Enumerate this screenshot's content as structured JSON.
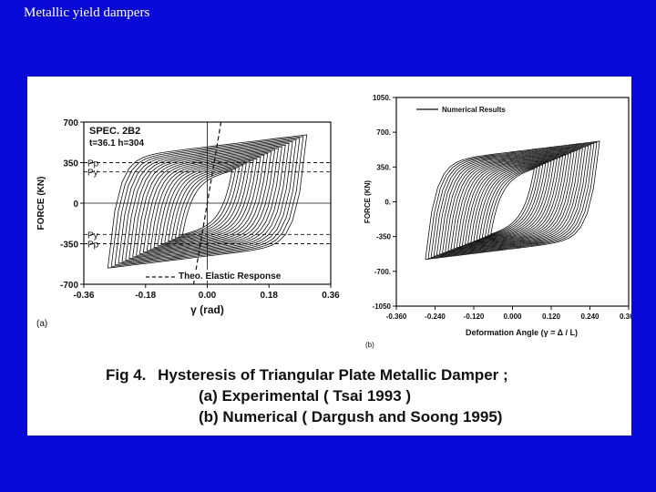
{
  "slide": {
    "title": "Metallic yield dampers"
  },
  "figure": {
    "caption": {
      "fig_label": "Fig 4.",
      "title": "Hysteresis of Triangular Plate Metallic Damper ;",
      "line_a": "(a) Experimental ( Tsai 1993 )",
      "line_b": "(b) Numerical ( Dargush and Soong 1995)"
    }
  },
  "chart_data": [
    {
      "type": "line",
      "panel_label": "(a)",
      "xlabel": "γ (rad)",
      "ylabel": "FORCE (KN)",
      "xlim": [
        -0.36,
        0.36
      ],
      "ylim": [
        -700,
        700
      ],
      "x_ticks": [
        "-0.36",
        "-0.18",
        "0.00",
        "0.18",
        "0.36"
      ],
      "y_ticks": [
        "700",
        "350",
        "0",
        "-350",
        "-700"
      ],
      "grid": false,
      "legend_position": "bottom-center",
      "annotations": [
        "SPEC. 2B2",
        "t=36.1  h=304"
      ],
      "reference_lines": [
        {
          "label": "Pp",
          "value": 350
        },
        {
          "label": "Py",
          "value": 270
        },
        {
          "label": "Py",
          "value": -270
        },
        {
          "label": "Pp",
          "value": -350
        }
      ],
      "series": [
        {
          "name": "Theo. Elastic Response",
          "style": "dashed",
          "x": [
            -0.04,
            0.04
          ],
          "y": [
            -700,
            700
          ]
        },
        {
          "style": "solid",
          "x": [
            -0.29,
            0.29
          ],
          "y": [
            -540,
            590
          ]
        }
      ],
      "colors": {
        "ink": "#111111"
      }
    },
    {
      "type": "line",
      "panel_label": "(b)",
      "xlabel": "Deformation Angle (γ = Δ / L)",
      "ylabel": "FORCE (KN)",
      "xlim": [
        -0.36,
        0.36
      ],
      "ylim": [
        -1050,
        1050
      ],
      "x_ticks": [
        "-0.360",
        "-0.240",
        "-0.120",
        "0.000",
        "0.120",
        "0.240",
        "0.360"
      ],
      "y_ticks": [
        "1050.",
        "700.",
        "350.",
        "0.",
        "-350",
        "-700.",
        "-1050"
      ],
      "grid": false,
      "legend_position": "top-left",
      "series": [
        {
          "name": "Numerical Results",
          "style": "solid",
          "x": [
            -0.27,
            0.27
          ],
          "y": [
            -580,
            610
          ]
        }
      ],
      "colors": {
        "ink": "#111111"
      }
    }
  ]
}
